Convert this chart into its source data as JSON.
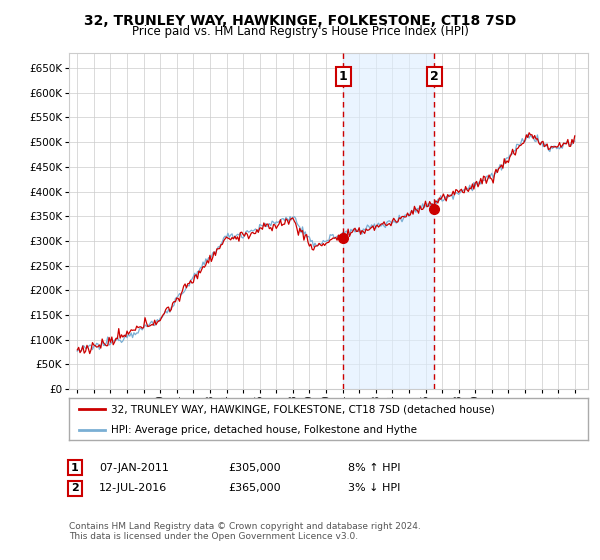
{
  "title": "32, TRUNLEY WAY, HAWKINGE, FOLKESTONE, CT18 7SD",
  "subtitle": "Price paid vs. HM Land Registry's House Price Index (HPI)",
  "legend_line1": "32, TRUNLEY WAY, HAWKINGE, FOLKESTONE, CT18 7SD (detached house)",
  "legend_line2": "HPI: Average price, detached house, Folkestone and Hythe",
  "annotation1_label": "1",
  "annotation1_date": "07-JAN-2011",
  "annotation1_price": "£305,000",
  "annotation1_hpi": "8% ↑ HPI",
  "annotation1_year": 2011.03,
  "annotation1_value": 305000,
  "annotation2_label": "2",
  "annotation2_date": "12-JUL-2016",
  "annotation2_price": "£365,000",
  "annotation2_hpi": "3% ↓ HPI",
  "annotation2_year": 2016.54,
  "annotation2_value": 365000,
  "footnote": "Contains HM Land Registry data © Crown copyright and database right 2024.\nThis data is licensed under the Open Government Licence v3.0.",
  "red_color": "#cc0000",
  "blue_color": "#7aafd4",
  "blue_fill": "#ddeeff",
  "ylim_min": 0,
  "ylim_max": 680000,
  "ytick_step": 50000,
  "background_color": "#ffffff",
  "grid_color": "#cccccc"
}
